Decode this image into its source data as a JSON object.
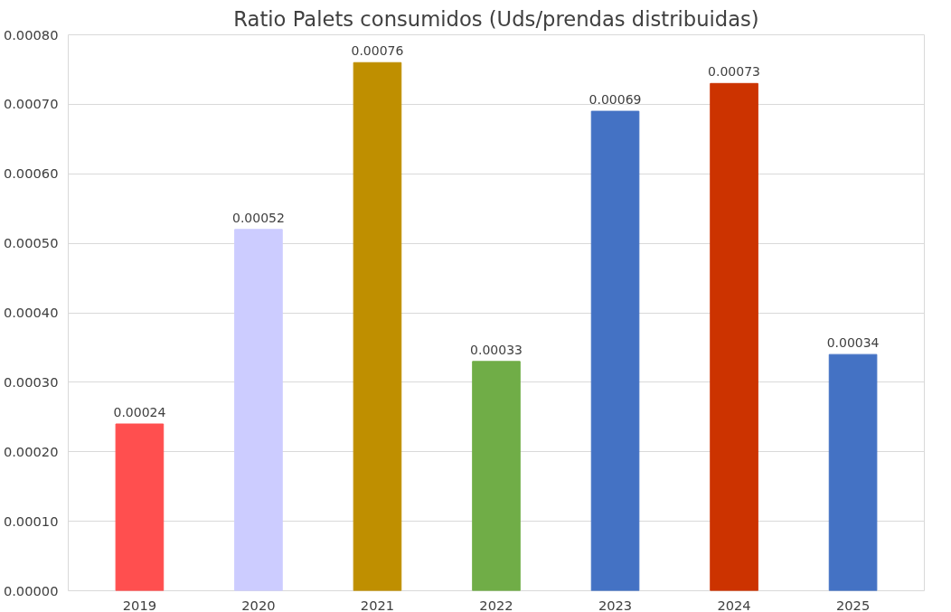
{
  "chart_data": {
    "type": "bar",
    "title": "Ratio Palets consumidos (Uds/prendas distribuidas)",
    "categories": [
      "2019",
      "2020",
      "2021",
      "2022",
      "2023",
      "2024",
      "2025"
    ],
    "values": [
      0.00024,
      0.00052,
      0.00076,
      0.00033,
      0.00069,
      0.00073,
      0.00034
    ],
    "colors": [
      "#ff4f4f",
      "#ccccff",
      "#bf8f00",
      "#70ad47",
      "#4472c4",
      "#cc3300",
      "#4472c4"
    ],
    "value_labels": [
      "0.00024",
      "0.00052",
      "0.00076",
      "0.00033",
      "0.00069",
      "0.00073",
      "0.00034"
    ],
    "ylim": [
      0,
      0.0008
    ],
    "yticks": [
      {
        "value": 0,
        "label": "0.00000"
      },
      {
        "value": 0.0001,
        "label": "0.00010"
      },
      {
        "value": 0.0002,
        "label": "0.00020"
      },
      {
        "value": 0.0003,
        "label": "0.00030"
      },
      {
        "value": 0.0004,
        "label": "0.00040"
      },
      {
        "value": 0.0005,
        "label": "0.00050"
      },
      {
        "value": 0.0006,
        "label": "0.00060"
      },
      {
        "value": 0.0007,
        "label": "0.00070"
      },
      {
        "value": 0.0008,
        "label": "0.00080"
      }
    ],
    "grid": "y"
  }
}
